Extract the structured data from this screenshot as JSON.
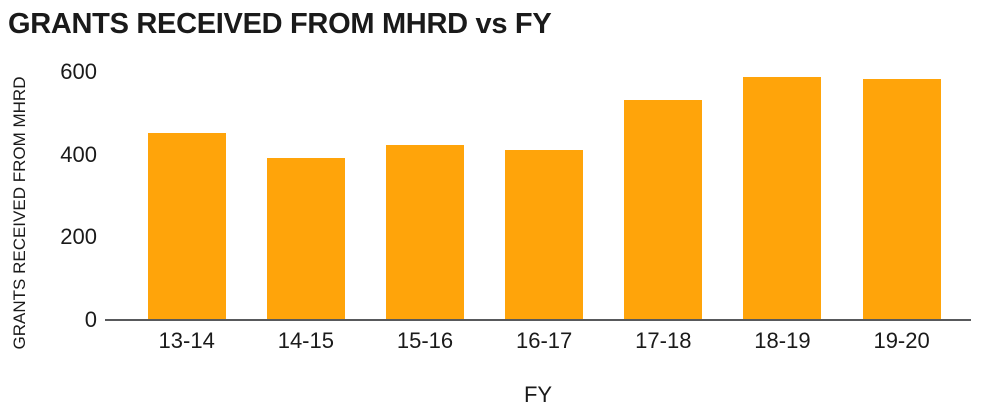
{
  "chart_data": {
    "type": "bar",
    "title": "GRANTS RECEIVED FROM MHRD vs FY",
    "xlabel": "FY",
    "ylabel": "GRANTS RECEIVED FROM MHRD",
    "categories": [
      "13-14",
      "14-15",
      "15-16",
      "16-17",
      "17-18",
      "18-19",
      "19-20"
    ],
    "values": [
      450,
      390,
      420,
      410,
      530,
      585,
      580
    ],
    "ylim": [
      0,
      600
    ],
    "yticks": [
      0,
      200,
      400,
      600
    ],
    "grid": false,
    "legend": false,
    "colors": {
      "bar": "#FFA40A",
      "axis_line": "#58595B",
      "text": "#1A1A1A",
      "background": "#FFFFFF"
    }
  }
}
